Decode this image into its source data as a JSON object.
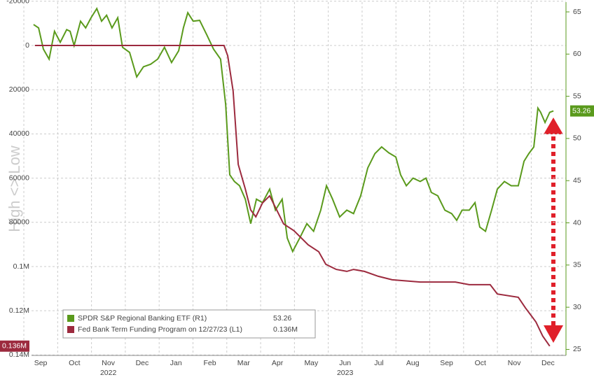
{
  "chart_data": {
    "type": "line",
    "axis_note": "High <> Low",
    "xlim": [
      -0.27,
      15.53
    ],
    "xticks": [
      {
        "value": 0,
        "label": "Sep"
      },
      {
        "value": 1,
        "label": "Oct"
      },
      {
        "value": 2,
        "label": "Nov"
      },
      {
        "value": 3,
        "label": "Dec"
      },
      {
        "value": 4,
        "label": "Jan"
      },
      {
        "value": 5,
        "label": "Feb"
      },
      {
        "value": 6,
        "label": "Mar"
      },
      {
        "value": 7,
        "label": "Apr"
      },
      {
        "value": 8,
        "label": "May"
      },
      {
        "value": 9,
        "label": "Jun"
      },
      {
        "value": 10,
        "label": "Jul"
      },
      {
        "value": 11,
        "label": "Aug"
      },
      {
        "value": 12,
        "label": "Sep"
      },
      {
        "value": 13,
        "label": "Oct"
      },
      {
        "value": 14,
        "label": "Nov"
      },
      {
        "value": 15,
        "label": "Dec"
      }
    ],
    "x_groups": [
      {
        "value": 2,
        "label": "2022"
      },
      {
        "value": 9,
        "label": "2023"
      }
    ],
    "ylim": [
      -19620,
      140200
    ],
    "y_inverted": true,
    "yticks": [
      -20000,
      0,
      20000,
      40000,
      60000,
      80000,
      {
        "value": 100000,
        "label": "0.1M"
      },
      {
        "value": 120000,
        "label": "0.12M"
      },
      {
        "value": 140000,
        "label": "0.14M"
      }
    ],
    "y2lim": [
      24.29,
      66.16
    ],
    "y2ticks": [
      25,
      30,
      35,
      40,
      45,
      50,
      55,
      60,
      65
    ],
    "grid": true,
    "series": [
      {
        "name": "SPDR S&P Regional Banking ETF (R1)",
        "color": "#5a9a1c",
        "axis": "y2",
        "last_label": "53.26",
        "x": [
          -0.21,
          -0.06,
          0.08,
          0.25,
          0.41,
          0.58,
          0.77,
          0.87,
          0.99,
          1.18,
          1.33,
          1.49,
          1.66,
          1.8,
          1.95,
          2.11,
          2.28,
          2.42,
          2.63,
          2.84,
          3.04,
          3.25,
          3.46,
          3.66,
          3.87,
          4.08,
          4.22,
          4.35,
          4.51,
          4.7,
          4.91,
          5.11,
          5.32,
          5.47,
          5.59,
          5.73,
          5.88,
          6.05,
          6.21,
          6.38,
          6.56,
          6.77,
          6.94,
          7.14,
          7.29,
          7.45,
          7.66,
          7.87,
          8.07,
          8.28,
          8.45,
          8.63,
          8.84,
          9.05,
          9.25,
          9.46,
          9.67,
          9.88,
          10.08,
          10.29,
          10.5,
          10.64,
          10.81,
          11.01,
          11.22,
          11.39,
          11.55,
          11.74,
          11.95,
          12.15,
          12.3,
          12.46,
          12.67,
          12.84,
          12.98,
          13.15,
          13.33,
          13.5,
          13.71,
          13.91,
          14.12,
          14.29,
          14.43,
          14.58,
          14.7,
          14.78,
          14.91,
          15.05,
          15.16
        ],
        "values": [
          63.5,
          63.1,
          60.6,
          59.4,
          62.7,
          61.4,
          62.9,
          62.7,
          61,
          63.9,
          63.1,
          64.3,
          65.4,
          63.9,
          64.6,
          63.1,
          64.3,
          60.8,
          60.2,
          57.3,
          58.5,
          58.8,
          59.4,
          60.8,
          59,
          60.4,
          63.1,
          64.9,
          63.9,
          64,
          62.3,
          60.6,
          59.4,
          54,
          45.7,
          44.9,
          44.4,
          42.8,
          39.9,
          42.8,
          42.4,
          44,
          41.5,
          42.8,
          38.2,
          36.6,
          38.2,
          39.9,
          39,
          41.5,
          44.4,
          42.8,
          40.7,
          41.5,
          41.1,
          43.2,
          46.5,
          48.2,
          49,
          48.3,
          47.8,
          45.7,
          44.4,
          45.3,
          44.9,
          45.3,
          43.6,
          43.2,
          41.5,
          41.1,
          40.3,
          41.5,
          41.5,
          42.4,
          39.5,
          39,
          41.5,
          44,
          44.9,
          44.4,
          44.4,
          47.3,
          48.2,
          49,
          53.6,
          53.1,
          51.9,
          53.1,
          53.26
        ]
      },
      {
        "name": "Fed Bank Term Funding Program on 12/27/23 (L1)",
        "color": "#9c2a3e",
        "axis": "y",
        "last_label": "0.136M",
        "x": [
          -0.17,
          5.42,
          5.53,
          5.69,
          5.84,
          6.05,
          6.21,
          6.36,
          6.56,
          6.77,
          7.08,
          7.18,
          7.49,
          7.91,
          8.22,
          8.43,
          8.74,
          9.05,
          9.25,
          9.57,
          9.98,
          10.39,
          11.22,
          12.26,
          12.67,
          13.29,
          13.5,
          14.12,
          14.33,
          14.64,
          14.84,
          15.05
        ],
        "values": [
          0,
          0,
          4700,
          20600,
          53800,
          64900,
          74400,
          77500,
          71200,
          68000,
          77500,
          80700,
          83800,
          90200,
          93300,
          99000,
          101300,
          102200,
          101300,
          102200,
          104400,
          106000,
          107000,
          107000,
          108200,
          108200,
          112400,
          113900,
          118700,
          125000,
          131400,
          136000
        ]
      }
    ]
  }
}
